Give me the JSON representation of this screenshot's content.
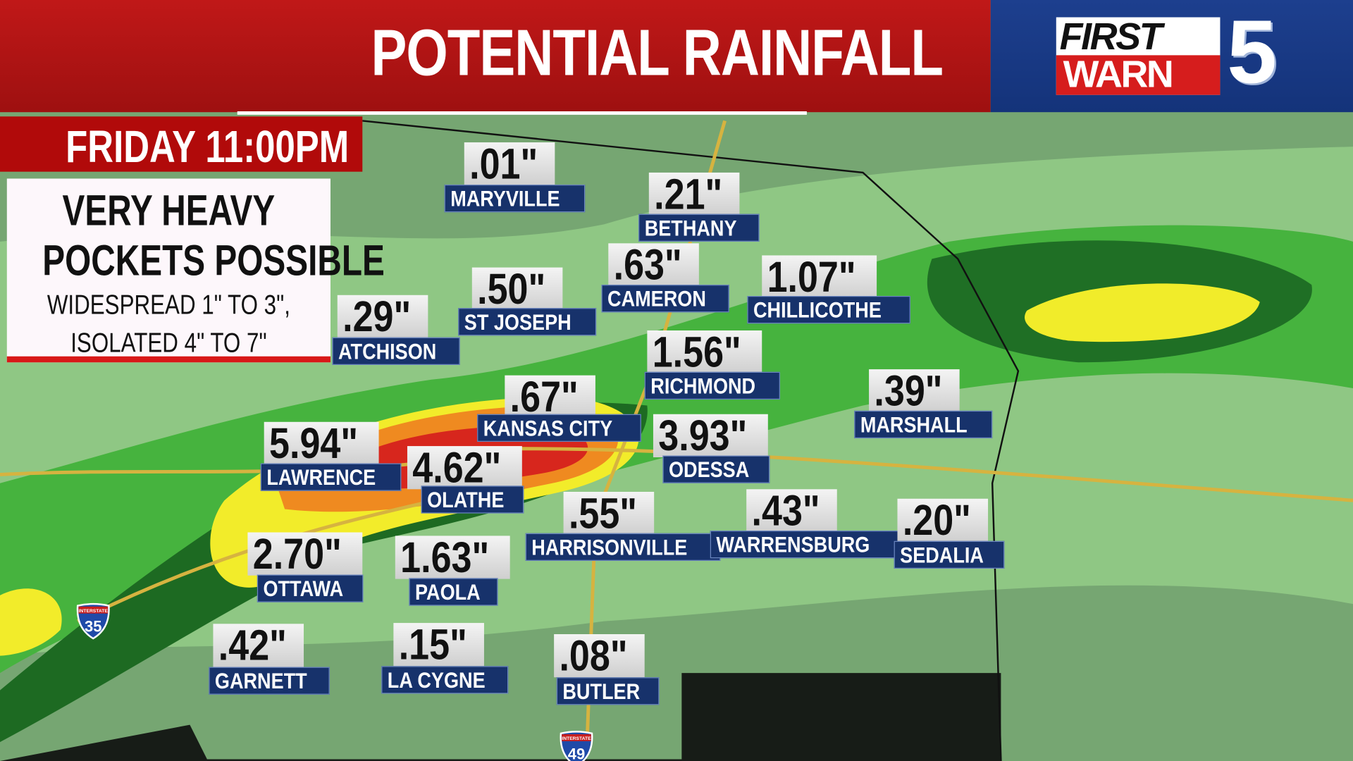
{
  "header": {
    "title": "POTENTIAL RAINFALL"
  },
  "logo": {
    "line1": "FIRST",
    "line2": "WARN",
    "number": "5"
  },
  "time": {
    "label": "FRIDAY 11:00PM"
  },
  "note": {
    "headline_1": "VERY HEAVY",
    "headline_2": "POCKETS POSSIBLE",
    "detail_1": "WIDESPREAD 1\" TO 3\",",
    "detail_2": "ISOLATED 4\" TO 7\""
  },
  "highways": [
    {
      "label": "35",
      "sublabel": "INTERSTATE"
    },
    {
      "label": "49",
      "sublabel": "INTERSTATE"
    }
  ],
  "colors": {
    "header_red": "#b71414",
    "logo_blue": "#1a3a86",
    "label_navy": "#17326b",
    "rain_light": "#9fd38a",
    "rain_green": "#3fae3a",
    "rain_dark": "#1c6e22",
    "rain_yellow": "#f2ee2a",
    "rain_orange": "#f08a1e",
    "rain_red": "#d8261c"
  },
  "cities": [
    {
      "name": "MARYVILLE",
      "amount": ".01\""
    },
    {
      "name": "BETHANY",
      "amount": ".21\""
    },
    {
      "name": "CAMERON",
      "amount": ".63\""
    },
    {
      "name": "CHILLICOTHE",
      "amount": "1.07\""
    },
    {
      "name": "ST JOSEPH",
      "amount": ".50\""
    },
    {
      "name": "ATCHISON",
      "amount": ".29\""
    },
    {
      "name": "RICHMOND",
      "amount": "1.56\""
    },
    {
      "name": "KANSAS CITY",
      "amount": ".67\""
    },
    {
      "name": "MARSHALL",
      "amount": ".39\""
    },
    {
      "name": "LAWRENCE",
      "amount": "5.94\""
    },
    {
      "name": "OLATHE",
      "amount": "4.62\""
    },
    {
      "name": "ODESSA",
      "amount": "3.93\""
    },
    {
      "name": "HARRISONVILLE",
      "amount": ".55\""
    },
    {
      "name": "WARRENSBURG",
      "amount": ".43\""
    },
    {
      "name": "SEDALIA",
      "amount": ".20\""
    },
    {
      "name": "OTTAWA",
      "amount": "2.70\""
    },
    {
      "name": "PAOLA",
      "amount": "1.63\""
    },
    {
      "name": "GARNETT",
      "amount": ".42\""
    },
    {
      "name": "LA CYGNE",
      "amount": ".15\""
    },
    {
      "name": "BUTLER",
      "amount": ".08\""
    }
  ]
}
